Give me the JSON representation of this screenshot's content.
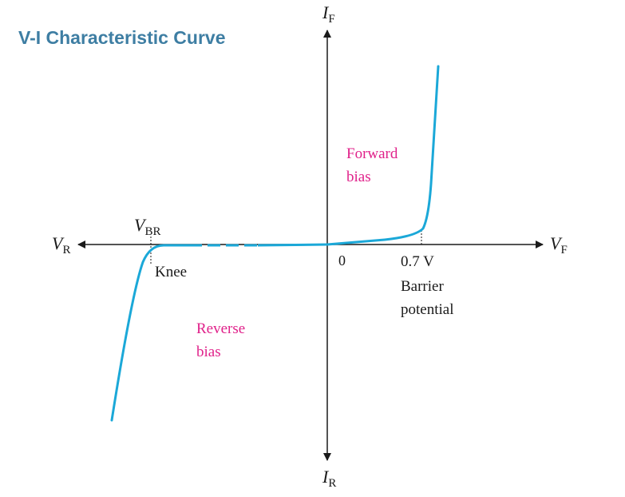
{
  "title": "V-I Characteristic Curve",
  "axes": {
    "forward_current": {
      "symbol": "I",
      "subscript": "F"
    },
    "reverse_current": {
      "symbol": "I",
      "subscript": "R"
    },
    "forward_voltage": {
      "symbol": "V",
      "subscript": "F"
    },
    "reverse_voltage": {
      "symbol": "V",
      "subscript": "R"
    },
    "origin": "0"
  },
  "annotations": {
    "breakdown": {
      "symbol": "V",
      "subscript": "BR"
    },
    "knee": "Knee",
    "threshold": "0.7 V",
    "barrier_line1": "Barrier",
    "barrier_line2": "potential"
  },
  "regions": {
    "forward_line1": "Forward",
    "forward_line2": "bias",
    "reverse_line1": "Reverse",
    "reverse_line2": "bias"
  },
  "colors": {
    "curve": "#1ba8d8",
    "title": "#3e7ea3",
    "region_label": "#e0218a",
    "axis": "#1a1a1a"
  }
}
